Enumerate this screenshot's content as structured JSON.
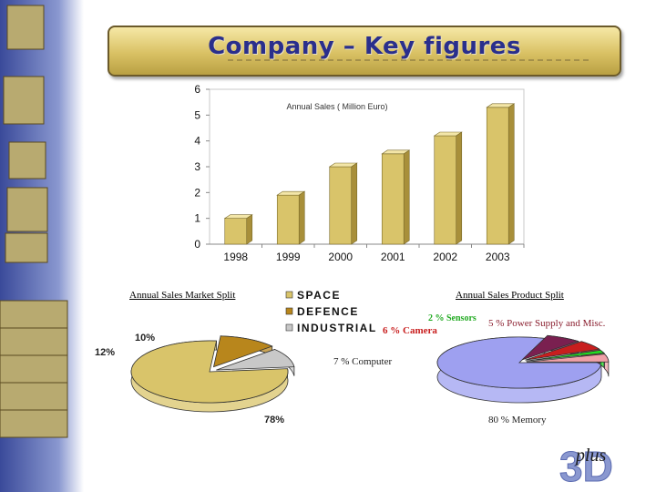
{
  "title": "Company – Key figures",
  "chart_data": [
    {
      "type": "bar",
      "title": "Annual Sales ( Million Euro)",
      "categories": [
        "1998",
        "1999",
        "2000",
        "2001",
        "2002",
        "2003"
      ],
      "values": [
        1.0,
        1.9,
        3.0,
        3.5,
        4.2,
        5.3
      ],
      "ylim": [
        0,
        6
      ],
      "yticks": [
        "0",
        "1",
        "2",
        "3",
        "4",
        "5",
        "6"
      ],
      "grid": false,
      "xlabel": "",
      "ylabel": "",
      "colors": {
        "bar": "#d9c46a",
        "bar_top": "#f3e6a8",
        "bar_side": "#a88f3a"
      }
    },
    {
      "type": "pie",
      "title": "Annual Sales Market Split",
      "slices": [
        {
          "name": "SPACE",
          "value": 78,
          "label": "78%",
          "color": "#d9c46a"
        },
        {
          "name": "DEFENCE",
          "value": 12,
          "label": "12%",
          "color": "#b8861c"
        },
        {
          "name": "INDUSTRIAL",
          "value": 10,
          "label": "10%",
          "color": "#c8c8c8"
        }
      ],
      "legend": "top-right",
      "legend_entries": [
        "SPACE",
        "DEFENCE",
        "INDUSTRIAL"
      ]
    },
    {
      "type": "pie",
      "title": "Annual Sales Product Split",
      "slices": [
        {
          "name": "Memory",
          "value": 80,
          "label": "80 %  Memory",
          "color": "#9ea0f0"
        },
        {
          "name": "Computer",
          "value": 7,
          "label": "7 %  Computer",
          "color": "#7a2050"
        },
        {
          "name": "Camera",
          "value": 6,
          "label": "6 % Camera",
          "color": "#c81e1e"
        },
        {
          "name": "Sensors",
          "value": 2,
          "label": "2 % Sensors",
          "color": "#22dd22"
        },
        {
          "name": "Power Supply and Misc.",
          "value": 5,
          "label": "5 % Power Supply and  Misc.",
          "color": "#f0a0a8"
        }
      ]
    }
  ],
  "colors": {
    "title_text": "#2a2f8c",
    "banner": "#d9c164"
  },
  "logo_text": "plus",
  "logo_mark": "3D"
}
